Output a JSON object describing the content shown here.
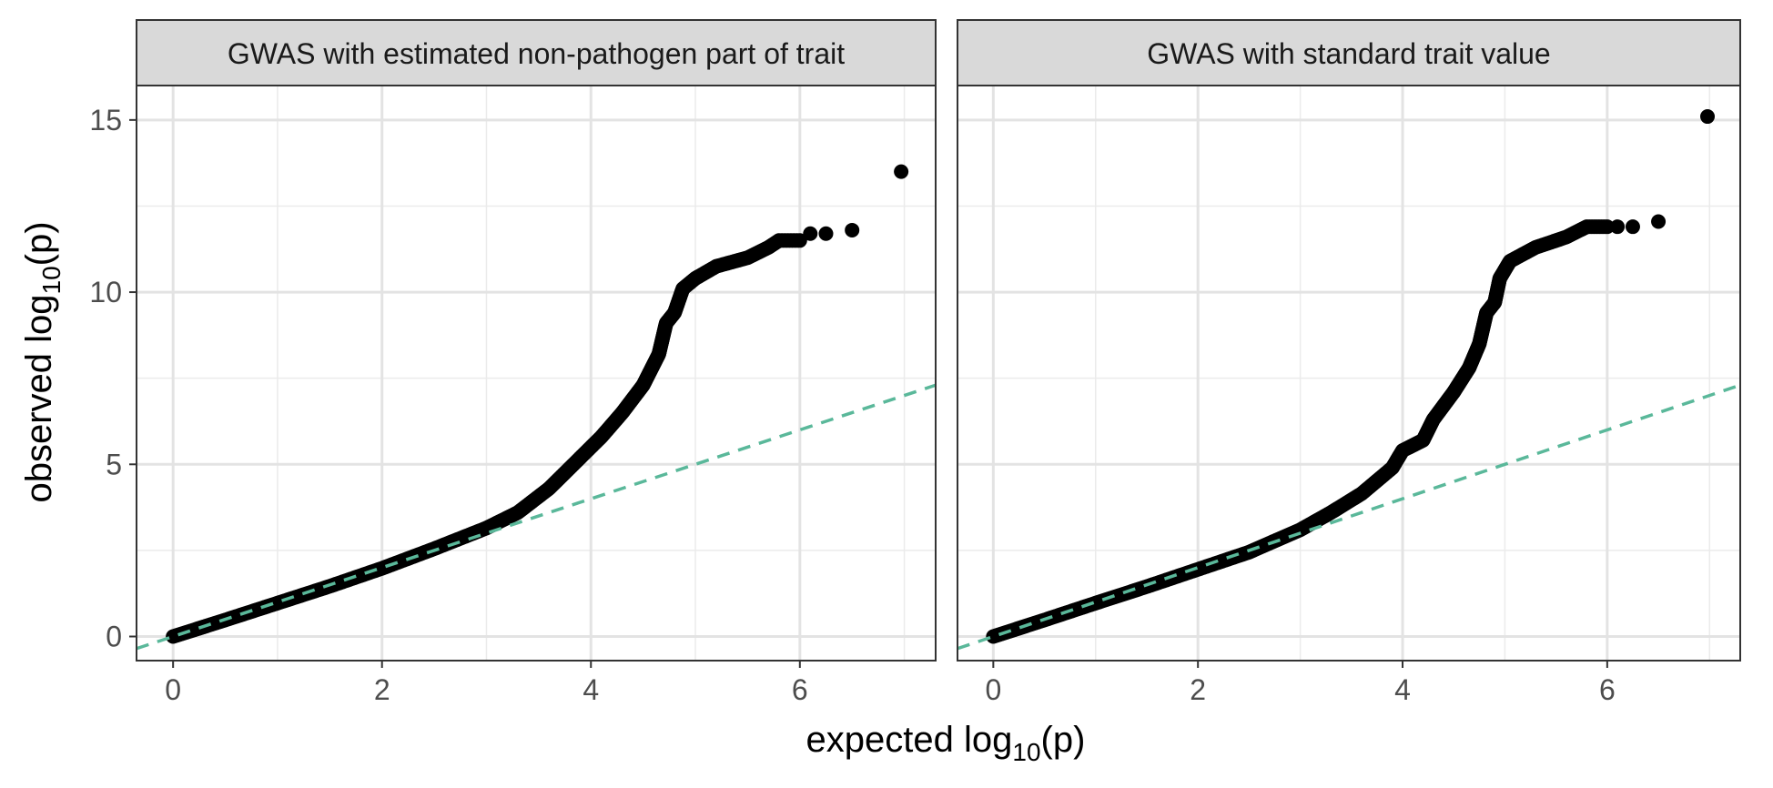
{
  "chart_data": {
    "type": "scatter",
    "xlabel": {
      "prefix": "expected log",
      "subscript": "10",
      "suffix": "(p)"
    },
    "ylabel": {
      "prefix": "observed log",
      "subscript": "10",
      "suffix": "(p)"
    },
    "xlim": [
      -0.35,
      7.3
    ],
    "ylim": [
      -0.7,
      16
    ],
    "x_ticks": [
      0,
      2,
      4,
      6
    ],
    "y_ticks": [
      0,
      5,
      10,
      15
    ],
    "grid": true,
    "reference_line": {
      "slope": 1,
      "intercept": 0,
      "style": "dashed",
      "color": "#5ab89a"
    },
    "point_color": "#000000",
    "panels": [
      {
        "title": "GWAS with estimated non-pathogen part of trait",
        "curve": [
          [
            0,
            0
          ],
          [
            0.5,
            0.48
          ],
          [
            1,
            0.97
          ],
          [
            1.5,
            1.46
          ],
          [
            2,
            1.98
          ],
          [
            2.5,
            2.55
          ],
          [
            3,
            3.15
          ],
          [
            3.3,
            3.6
          ],
          [
            3.6,
            4.3
          ],
          [
            3.9,
            5.2
          ],
          [
            4.1,
            5.8
          ],
          [
            4.3,
            6.5
          ],
          [
            4.5,
            7.3
          ],
          [
            4.65,
            8.2
          ],
          [
            4.72,
            9.1
          ],
          [
            4.8,
            9.4
          ],
          [
            4.88,
            10.1
          ],
          [
            5.0,
            10.4
          ],
          [
            5.2,
            10.75
          ],
          [
            5.5,
            11.0
          ],
          [
            5.7,
            11.3
          ],
          [
            5.8,
            11.5
          ],
          [
            6.0,
            11.5
          ]
        ],
        "outliers": [
          [
            6.1,
            11.7
          ],
          [
            6.25,
            11.7
          ],
          [
            6.5,
            11.8
          ],
          [
            6.97,
            13.5
          ]
        ]
      },
      {
        "title": "GWAS with standard trait value",
        "curve": [
          [
            0,
            0
          ],
          [
            0.5,
            0.48
          ],
          [
            1,
            0.97
          ],
          [
            1.5,
            1.45
          ],
          [
            2,
            1.95
          ],
          [
            2.5,
            2.45
          ],
          [
            3,
            3.1
          ],
          [
            3.3,
            3.6
          ],
          [
            3.6,
            4.15
          ],
          [
            3.9,
            4.9
          ],
          [
            4.0,
            5.4
          ],
          [
            4.2,
            5.7
          ],
          [
            4.3,
            6.3
          ],
          [
            4.5,
            7.1
          ],
          [
            4.65,
            7.8
          ],
          [
            4.75,
            8.5
          ],
          [
            4.82,
            9.4
          ],
          [
            4.9,
            9.7
          ],
          [
            4.95,
            10.4
          ],
          [
            5.05,
            10.9
          ],
          [
            5.3,
            11.3
          ],
          [
            5.6,
            11.6
          ],
          [
            5.8,
            11.9
          ],
          [
            6.0,
            11.9
          ]
        ],
        "outliers": [
          [
            6.1,
            11.9
          ],
          [
            6.25,
            11.9
          ],
          [
            6.5,
            12.05
          ],
          [
            6.98,
            15.1
          ]
        ]
      }
    ]
  }
}
